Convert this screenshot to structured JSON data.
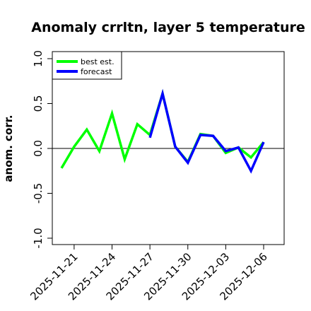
{
  "chart_data": {
    "type": "line",
    "title": "Anomaly crrltn, layer 5 temperature",
    "xlabel": "",
    "ylabel": "anom. corr.",
    "ylim": [
      -1.0,
      1.0
    ],
    "yticks": [
      "-1.0",
      "-0.5",
      "0.0",
      "0.5",
      "1.0"
    ],
    "xlim": [
      "2025-11-19",
      "2025-12-07"
    ],
    "xticks": [
      "2025-11-21",
      "2025-11-24",
      "2025-11-27",
      "2025-11-30",
      "2025-12-03",
      "2025-12-06"
    ],
    "highlighted_xtick": "2025-11-27",
    "highlight_color": "#228B22",
    "reference_line": 0.0,
    "grid": false,
    "legend": "top-left",
    "series": [
      {
        "name": "best est.",
        "color": "#00ff00",
        "x": [
          "2025-11-20",
          "2025-11-21",
          "2025-11-22",
          "2025-11-23",
          "2025-11-24",
          "2025-11-25",
          "2025-11-26",
          "2025-11-27",
          "2025-11-28",
          "2025-11-29",
          "2025-11-30",
          "2025-12-01",
          "2025-12-02",
          "2025-12-03",
          "2025-12-04",
          "2025-12-05",
          "2025-12-06"
        ],
        "values": [
          -0.22,
          0.02,
          0.21,
          -0.03,
          0.39,
          -0.12,
          0.27,
          0.15,
          0.61,
          0.02,
          -0.15,
          0.16,
          0.14,
          -0.05,
          0.01,
          -0.1,
          0.07
        ]
      },
      {
        "name": "forecast",
        "color": "#0000ff",
        "x": [
          "2025-11-27",
          "2025-11-28",
          "2025-11-29",
          "2025-11-30",
          "2025-12-01",
          "2025-12-02",
          "2025-12-03",
          "2025-12-04",
          "2025-12-05",
          "2025-12-06"
        ],
        "values": [
          0.12,
          0.61,
          0.02,
          -0.16,
          0.15,
          0.14,
          -0.03,
          0.01,
          -0.25,
          0.07
        ]
      }
    ]
  }
}
